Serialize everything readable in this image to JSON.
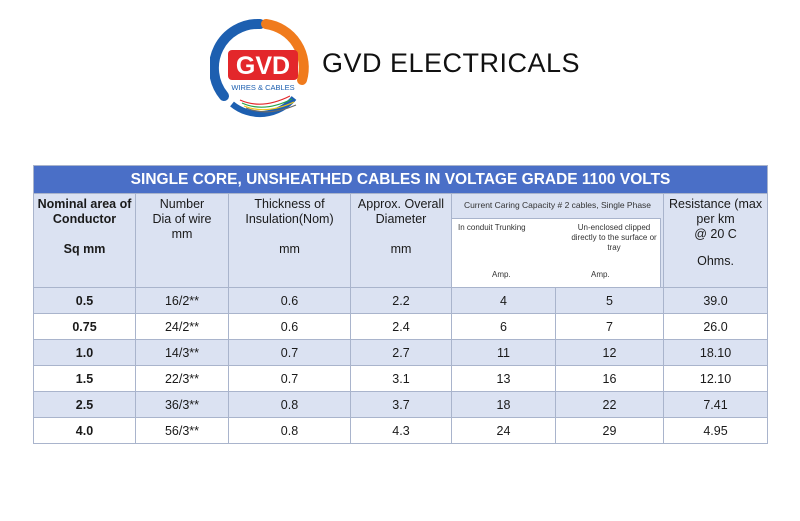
{
  "logo": {
    "letters": "GVD",
    "subtitle": "WIRES & CABLES",
    "colors": {
      "blue": "#1d5fb0",
      "orange": "#f07b1d",
      "red": "#e3272b"
    }
  },
  "brand_name": "GVD ELECTRICALS",
  "table": {
    "title": "SINGLE CORE, UNSHEATHED CABLES IN VOLTAGE GRADE 1100 VOLTS",
    "headers": {
      "col1": {
        "line1": "Nominal area of",
        "line2": "Conductor",
        "line3": "Sq mm"
      },
      "col2": {
        "line1": "Number",
        "line2": "Dia of wire",
        "line3": "mm"
      },
      "col3": {
        "line1": "Thickness of",
        "line2": "Insulation(Nom)",
        "line3": "mm"
      },
      "col4": {
        "line1": "Approx. Overall",
        "line2": "Diameter",
        "line3": "mm"
      },
      "capacity": {
        "title": "Current Caring Capacity # 2 cables, Single Phase",
        "sub1": "In conduit Trunking",
        "sub2_line1": "Un-enclosed clipped",
        "sub2_line2": "directly to the surface or",
        "sub2_line3": "tray",
        "amp1": "Amp.",
        "amp2": "Amp."
      },
      "col7": {
        "line1": "Resistance (max",
        "line2": "per km",
        "line3": "@ 20 C",
        "line4": "Ohms."
      }
    },
    "rows": [
      {
        "size": "0.5",
        "wires": "16/2**",
        "insulation": "0.6",
        "diameter": "2.2",
        "conduit": "4",
        "clipped": "5",
        "resistance": "39.0"
      },
      {
        "size": "0.75",
        "wires": "24/2**",
        "insulation": "0.6",
        "diameter": "2.4",
        "conduit": "6",
        "clipped": "7",
        "resistance": "26.0"
      },
      {
        "size": "1.0",
        "wires": "14/3**",
        "insulation": "0.7",
        "diameter": "2.7",
        "conduit": "11",
        "clipped": "12",
        "resistance": "18.10"
      },
      {
        "size": "1.5",
        "wires": "22/3**",
        "insulation": "0.7",
        "diameter": "3.1",
        "conduit": "13",
        "clipped": "16",
        "resistance": "12.10"
      },
      {
        "size": "2.5",
        "wires": "36/3**",
        "insulation": "0.8",
        "diameter": "3.7",
        "conduit": "18",
        "clipped": "22",
        "resistance": "7.41"
      },
      {
        "size": "4.0",
        "wires": "56/3**",
        "insulation": "0.8",
        "diameter": "4.3",
        "conduit": "24",
        "clipped": "29",
        "resistance": "4.95"
      }
    ]
  }
}
